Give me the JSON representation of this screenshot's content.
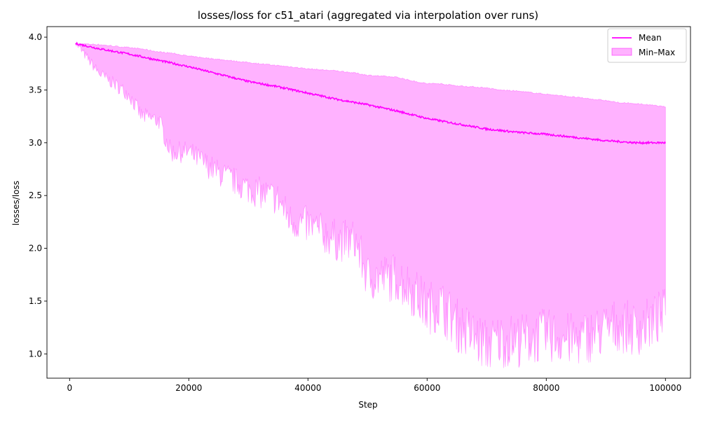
{
  "chart_data": {
    "type": "line",
    "title": "losses/loss for c51_atari (aggregated via interpolation over runs)",
    "xlabel": "Step",
    "ylabel": "losses/loss",
    "xlim": [
      -3800,
      104200
    ],
    "ylim": [
      0.77,
      4.1
    ],
    "xticks": [
      0,
      20000,
      40000,
      60000,
      80000,
      100000
    ],
    "yticks": [
      1.0,
      1.5,
      2.0,
      2.5,
      3.0,
      3.5,
      4.0
    ],
    "grid": false,
    "legend_position": "top-right",
    "colors": {
      "mean": "#ff00ff",
      "band_fill": "#ff00ff",
      "band_alpha": 0.3
    },
    "series": [
      {
        "name": "Mean",
        "kind": "line",
        "x": [
          1000,
          5000,
          10000,
          15000,
          20000,
          25000,
          30000,
          35000,
          40000,
          45000,
          50000,
          55000,
          60000,
          65000,
          70000,
          75000,
          80000,
          85000,
          90000,
          95000,
          100000
        ],
        "y": [
          3.94,
          3.89,
          3.84,
          3.78,
          3.72,
          3.65,
          3.58,
          3.53,
          3.47,
          3.41,
          3.36,
          3.3,
          3.23,
          3.18,
          3.13,
          3.1,
          3.08,
          3.05,
          3.02,
          3.0,
          3.0
        ]
      },
      {
        "name": "Min–Max",
        "kind": "band",
        "x": [
          1000,
          5000,
          10000,
          12000,
          15000,
          17000,
          20000,
          25000,
          30000,
          35000,
          37000,
          40000,
          45000,
          48000,
          50000,
          55000,
          58000,
          60000,
          62000,
          65000,
          70000,
          72000,
          75000,
          80000,
          85000,
          90000,
          92000,
          95000,
          97000,
          100000
        ],
        "upper": [
          3.94,
          3.93,
          3.9,
          3.89,
          3.86,
          3.85,
          3.82,
          3.79,
          3.76,
          3.73,
          3.72,
          3.7,
          3.68,
          3.66,
          3.64,
          3.62,
          3.58,
          3.56,
          3.56,
          3.54,
          3.52,
          3.5,
          3.49,
          3.46,
          3.43,
          3.4,
          3.38,
          3.37,
          3.36,
          3.34
        ],
        "lower": [
          3.94,
          3.65,
          3.45,
          3.25,
          3.2,
          2.9,
          2.9,
          2.7,
          2.55,
          2.45,
          2.25,
          2.2,
          2.05,
          2.05,
          1.7,
          1.7,
          1.55,
          1.4,
          1.45,
          1.25,
          1.05,
          1.1,
          1.1,
          1.15,
          1.1,
          1.2,
          1.25,
          1.2,
          1.25,
          1.35
        ]
      }
    ]
  }
}
